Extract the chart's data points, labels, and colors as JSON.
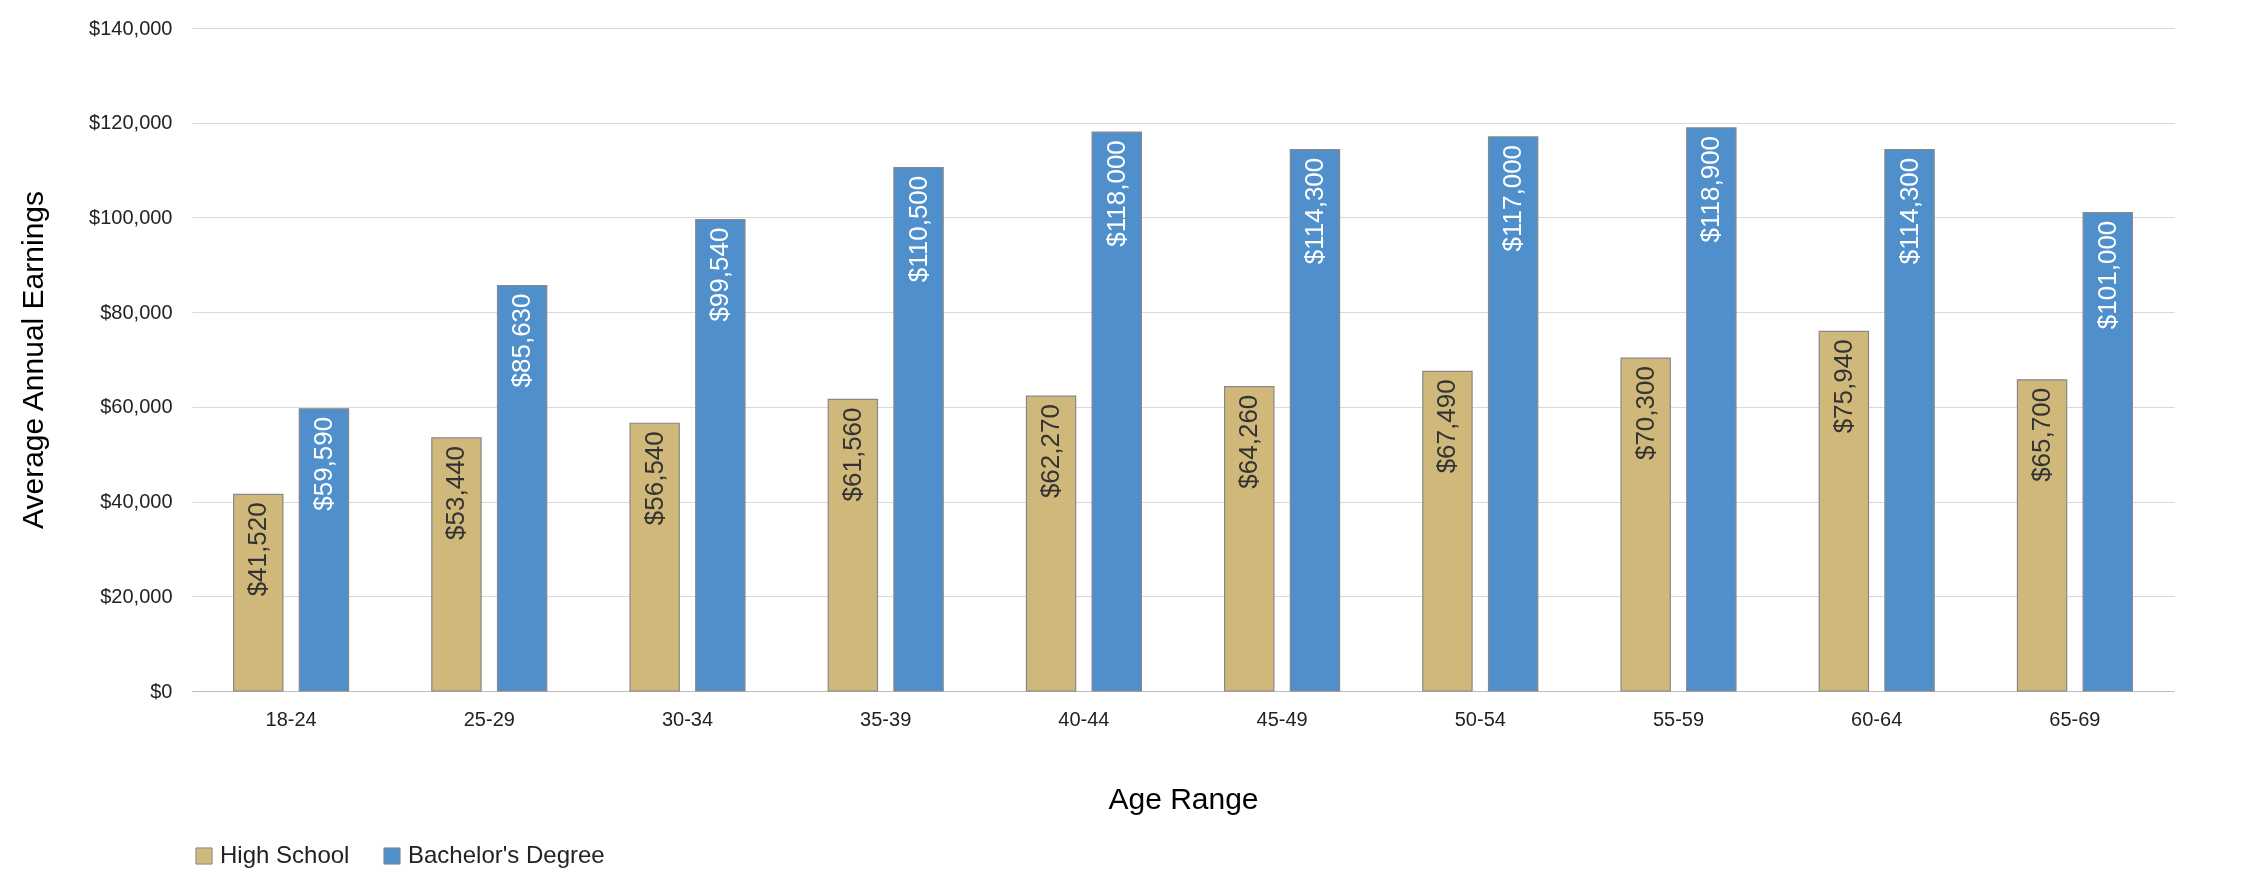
{
  "chart_data": {
    "type": "bar",
    "xlabel": "Age Range",
    "ylabel": "Average Annual Earnings",
    "categories": [
      "18-24",
      "25-29",
      "30-34",
      "35-39",
      "40-44",
      "45-49",
      "50-54",
      "55-59",
      "60-64",
      "65-69"
    ],
    "series": [
      {
        "name": "High School",
        "color": "#cfb87a",
        "values": [
          41520,
          53440,
          56540,
          61560,
          62270,
          64260,
          67490,
          70300,
          75940,
          65700
        ],
        "value_labels": [
          "$41,520",
          "$53,440",
          "$56,540",
          "$61,560",
          "$62,270",
          "$64,260",
          "$67,490",
          "$70,300",
          "$75,940",
          "$65,700"
        ]
      },
      {
        "name": "Bachelor's Degree",
        "color": "#4f8fcc",
        "values": [
          59590,
          85630,
          99540,
          110500,
          118000,
          114300,
          117000,
          118900,
          114300,
          101000
        ],
        "value_labels": [
          "$59,590",
          "$85,630",
          "$99,540",
          "$110,500",
          "$118,000",
          "$114,300",
          "$117,000",
          "$118,900",
          "$114,300",
          "$101,000"
        ]
      }
    ],
    "ylim": [
      0,
      140000
    ],
    "yticks": [
      {
        "value": 0,
        "label": "$0"
      },
      {
        "value": 20000,
        "label": "$20,000"
      },
      {
        "value": 40000,
        "label": "$40,000"
      },
      {
        "value": 60000,
        "label": "$60,000"
      },
      {
        "value": 80000,
        "label": "$80,000"
      },
      {
        "value": 100000,
        "label": "$100,000"
      },
      {
        "value": 120000,
        "label": "$120,000"
      },
      {
        "value": 140000,
        "label": "$140,000"
      }
    ],
    "grid": "y",
    "legend": "bottom"
  }
}
